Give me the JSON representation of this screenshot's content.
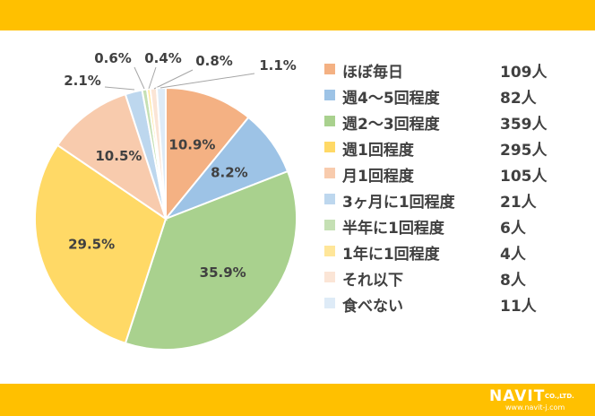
{
  "chart_data": {
    "type": "pie",
    "title": "",
    "slices": [
      {
        "label": "ほぼ毎日",
        "count": "109人",
        "value": 10.9,
        "pct_label": "10.9%",
        "color": "#f4b183"
      },
      {
        "label": "週4～5回程度",
        "count": "82人",
        "value": 8.2,
        "pct_label": "8.2%",
        "color": "#9dc3e6"
      },
      {
        "label": "週2～3回程度",
        "count": "359人",
        "value": 35.9,
        "pct_label": "35.9%",
        "color": "#a9d18e"
      },
      {
        "label": "週1回程度",
        "count": "295人",
        "value": 29.5,
        "pct_label": "29.5%",
        "color": "#ffd966"
      },
      {
        "label": "月1回程度",
        "count": "105人",
        "value": 10.5,
        "pct_label": "10.5%",
        "color": "#f8cbad"
      },
      {
        "label": "3ヶ月に1回程度",
        "count": "21人",
        "value": 2.1,
        "pct_label": "2.1%",
        "color": "#bdd7ee"
      },
      {
        "label": "半年に1回程度",
        "count": "6人",
        "value": 0.6,
        "pct_label": "0.6%",
        "color": "#c5e0b4"
      },
      {
        "label": "1年に1回程度",
        "count": "4人",
        "value": 0.4,
        "pct_label": "0.4%",
        "color": "#ffe699"
      },
      {
        "label": "それ以下",
        "count": "8人",
        "value": 0.8,
        "pct_label": "0.8%",
        "color": "#fbe5d6"
      },
      {
        "label": "食べない",
        "count": "11人",
        "value": 1.1,
        "pct_label": "1.1%",
        "color": "#deebf7"
      }
    ],
    "legend_position": "right"
  },
  "logo": {
    "name": "NAVIT",
    "company": "CO.,LTD.",
    "url": "www.navit-j.com"
  }
}
